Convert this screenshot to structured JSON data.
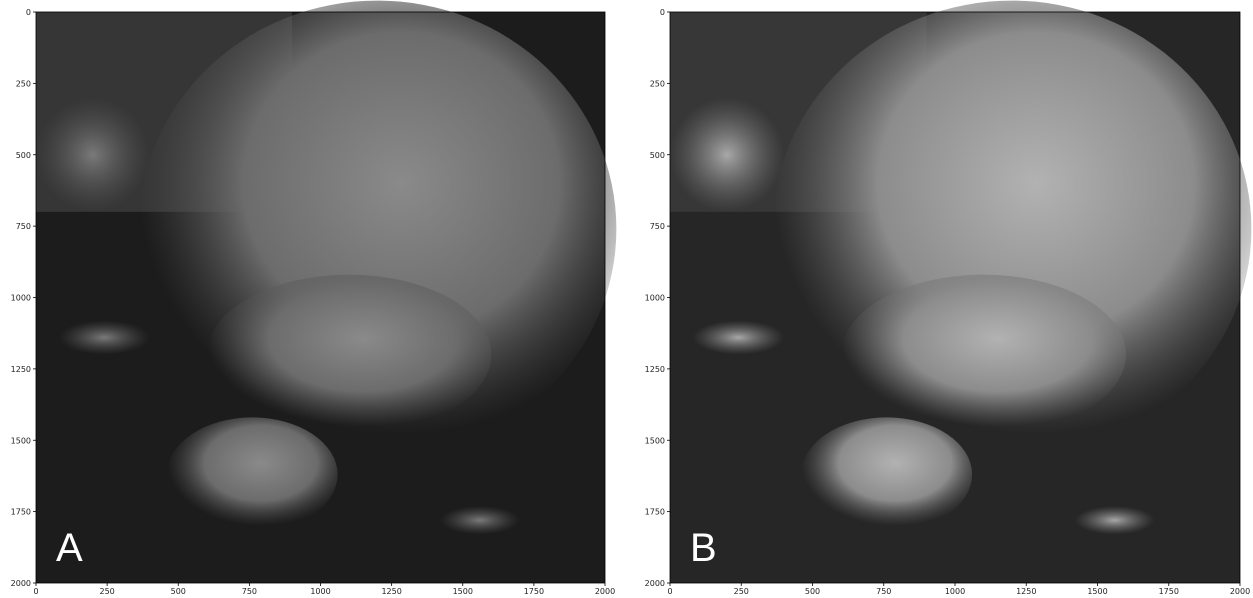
{
  "chart_data": [
    {
      "type": "image",
      "panel_label": "A",
      "xlim": [
        0,
        2000
      ],
      "ylim": [
        2000,
        0
      ],
      "xticks": [
        0,
        250,
        500,
        750,
        1000,
        1250,
        1500,
        1750,
        2000
      ],
      "yticks": [
        0,
        250,
        500,
        750,
        1000,
        1250,
        1500,
        1750,
        2000
      ]
    },
    {
      "type": "image",
      "panel_label": "B",
      "xlim": [
        0,
        2000
      ],
      "ylim": [
        2000,
        0
      ],
      "xticks": [
        0,
        250,
        500,
        750,
        1000,
        1250,
        1500,
        1750,
        2000
      ],
      "yticks": [
        0,
        250,
        500,
        750,
        1000,
        1250,
        1500,
        1750,
        2000
      ]
    }
  ]
}
